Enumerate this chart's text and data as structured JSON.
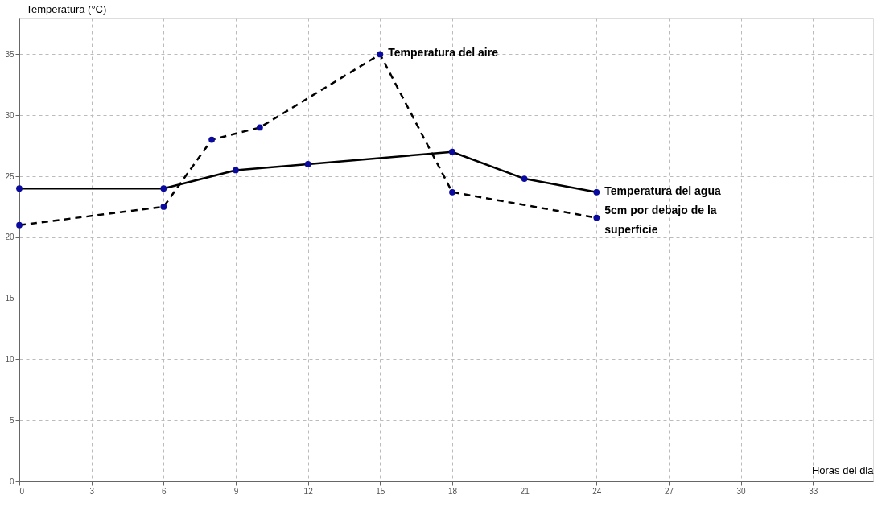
{
  "chart_data": {
    "type": "line",
    "xlabel": "Horas del dia",
    "ylabel": "Temperatura (°C)",
    "xlim": [
      0,
      35.5
    ],
    "ylim": [
      0,
      38
    ],
    "xticks": [
      0,
      3,
      6,
      9,
      12,
      15,
      18,
      21,
      24,
      27,
      30,
      33
    ],
    "yticks": [
      0,
      5,
      10,
      15,
      20,
      25,
      30,
      35
    ],
    "grid": true,
    "legend": false,
    "marker": "circle",
    "series": [
      {
        "name": "Temperatura del aire",
        "color": "#000000",
        "line_style": "dashed",
        "x": [
          0,
          6,
          8,
          10,
          15,
          18,
          24
        ],
        "values": [
          21,
          22.5,
          28,
          29,
          35,
          23.7,
          21.6
        ]
      },
      {
        "name": "Temperatura del agua 5cm por debajo de la superficie",
        "color": "#000000",
        "line_style": "solid",
        "x": [
          0,
          6,
          9,
          12,
          18,
          21,
          24
        ],
        "values": [
          24,
          24,
          25.5,
          26,
          27,
          24.8,
          23.7
        ]
      }
    ]
  }
}
